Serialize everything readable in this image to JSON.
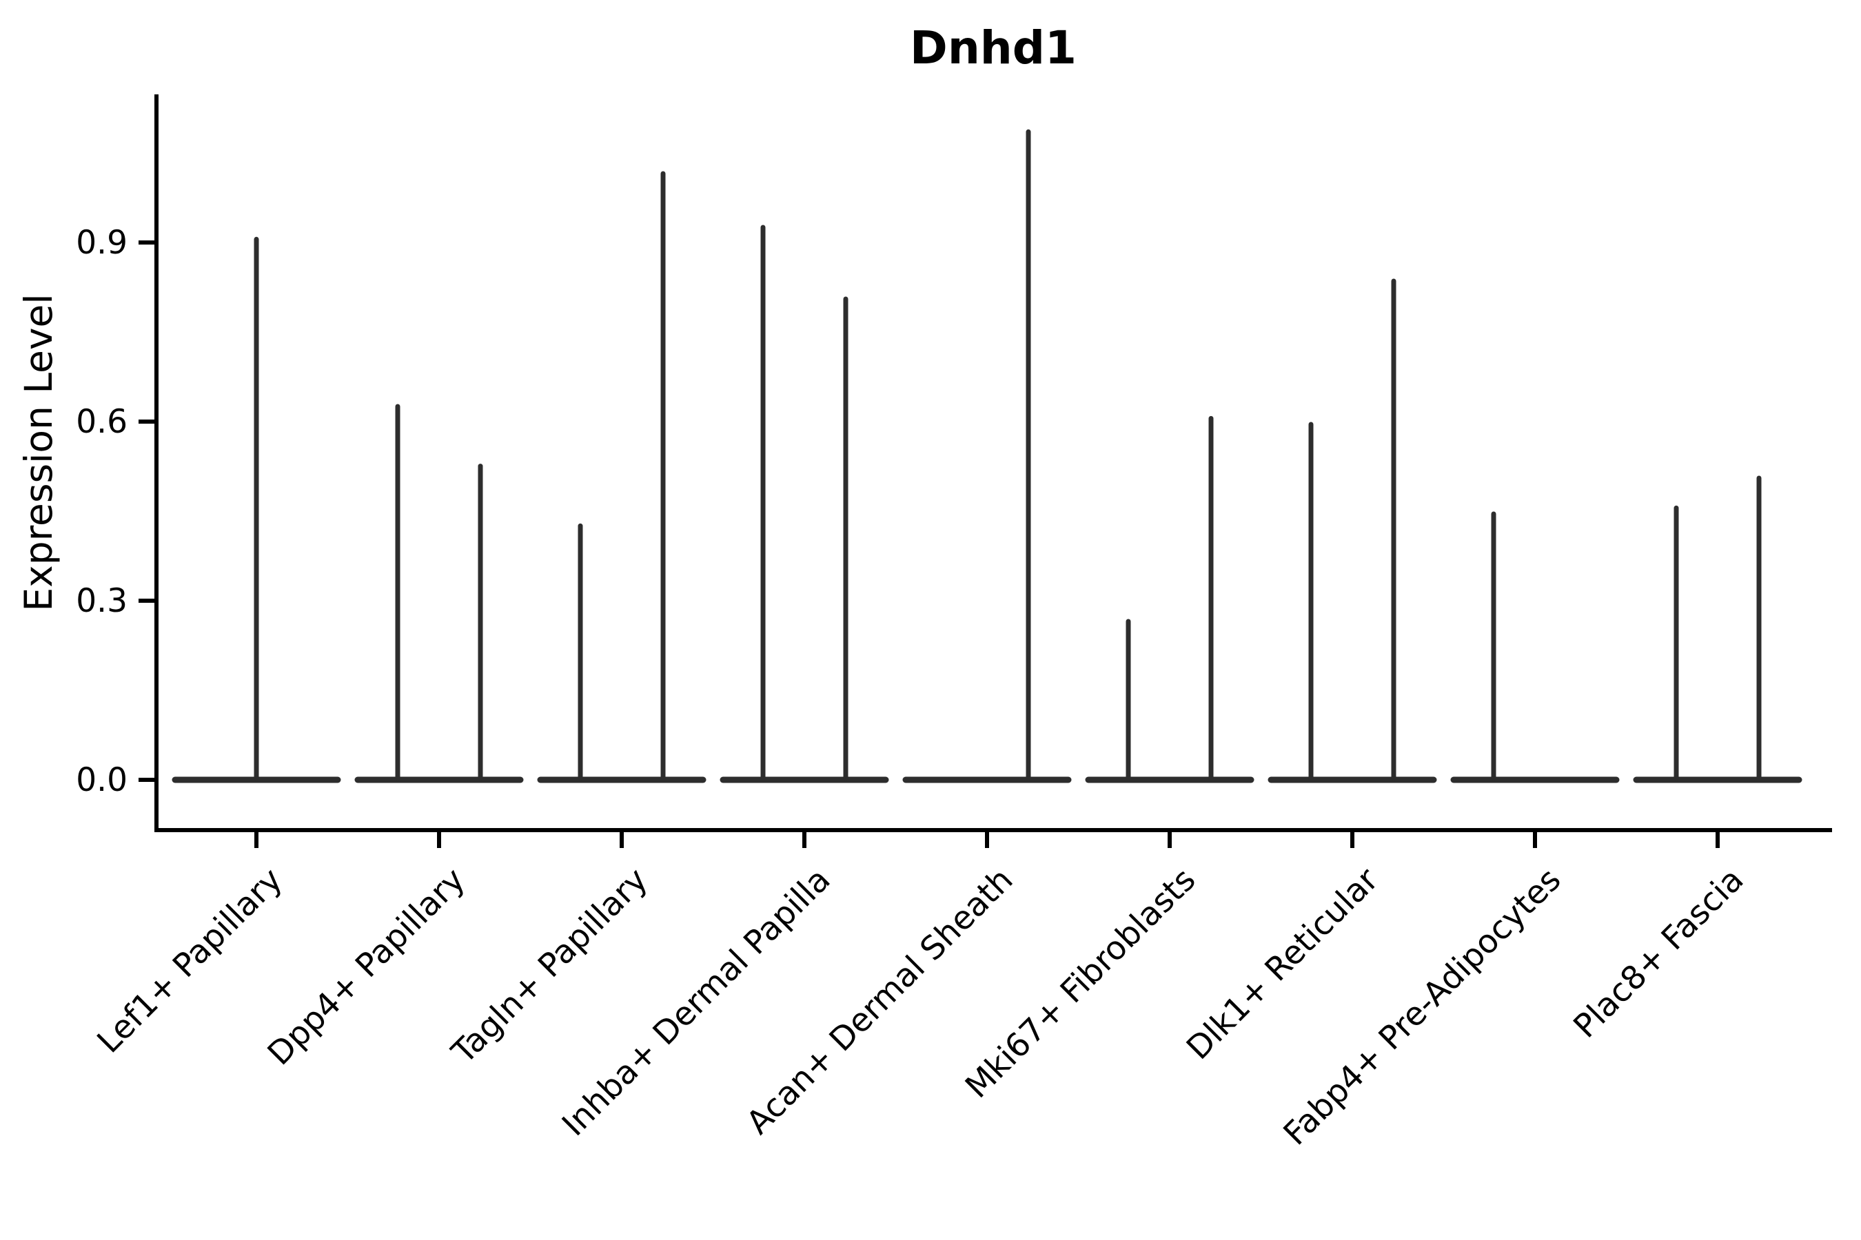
{
  "chart_data": {
    "type": "violin",
    "title": "Dnhd1",
    "xlabel": "",
    "ylabel": "Expression Level",
    "yticks": [
      0.0,
      0.3,
      0.6,
      0.9
    ],
    "ylim": [
      -0.05,
      1.145
    ],
    "grid": false,
    "legend": "none",
    "categories": [
      "Lef1+ Papillary",
      "Dpp4+ Papillary",
      "Tagln+ Papillary",
      "Inhba+ Dermal Papilla",
      "Acan+ Dermal Sheath",
      "Mki67+ Fibroblasts",
      "Dlk1+ Reticular",
      "Fabp4+ Pre-Adipocytes",
      "Plac8+ Fascia"
    ],
    "series": [
      {
        "category": "Lef1+ Papillary",
        "violins": [
          {
            "side": "center",
            "max": 0.91
          }
        ]
      },
      {
        "category": "Dpp4+ Papillary",
        "violins": [
          {
            "side": "left",
            "max": 0.63
          },
          {
            "side": "right",
            "max": 0.53
          }
        ]
      },
      {
        "category": "Tagln+ Papillary",
        "violins": [
          {
            "side": "left",
            "max": 0.43
          },
          {
            "side": "right",
            "max": 1.02
          }
        ]
      },
      {
        "category": "Inhba+ Dermal Papilla",
        "violins": [
          {
            "side": "left",
            "max": 0.93
          },
          {
            "side": "right",
            "max": 0.81
          }
        ]
      },
      {
        "category": "Acan+ Dermal Sheath",
        "violins": [
          {
            "side": "left",
            "max": 0.0
          },
          {
            "side": "right",
            "max": 1.09
          }
        ]
      },
      {
        "category": "Mki67+ Fibroblasts",
        "violins": [
          {
            "side": "left",
            "max": 0.27
          },
          {
            "side": "right",
            "max": 0.61
          }
        ]
      },
      {
        "category": "Dlk1+ Reticular",
        "violins": [
          {
            "side": "left",
            "max": 0.6
          },
          {
            "side": "right",
            "max": 0.84
          }
        ]
      },
      {
        "category": "Fabp4+ Pre-Adipocytes",
        "violins": [
          {
            "side": "left",
            "max": 0.45
          },
          {
            "side": "right",
            "max": 0.0
          }
        ]
      },
      {
        "category": "Plac8+ Fascia",
        "violins": [
          {
            "side": "left",
            "max": 0.46
          },
          {
            "side": "right",
            "max": 0.51
          }
        ]
      }
    ],
    "colors": {
      "violin": "#2d2d2d",
      "axis": "#000000",
      "text": "#000000",
      "background": "#ffffff"
    }
  }
}
